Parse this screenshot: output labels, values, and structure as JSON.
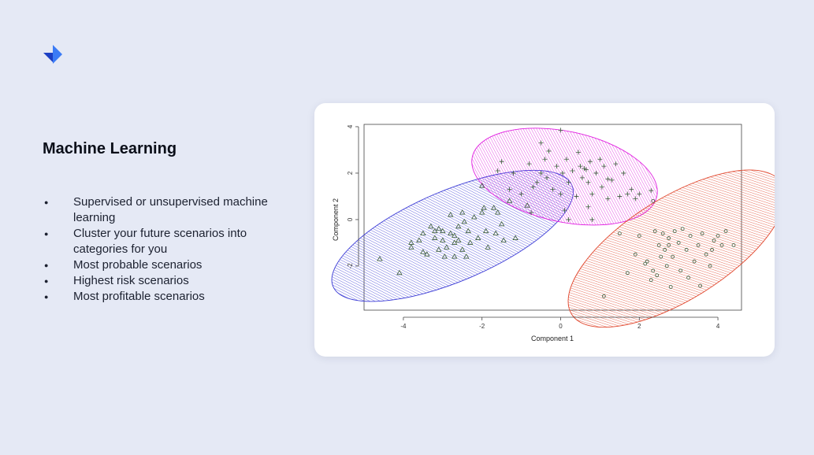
{
  "heading": "Machine Learning",
  "bullets": [
    "Supervised or unsupervised machine learning",
    "Cluster your future scenarios into categories for you",
    "Most probable scenarios",
    "Highest risk scenarios",
    "Most profitable scenarios"
  ],
  "colors": {
    "background": "#e5e9f5",
    "logo_dark": "#1c3fc4",
    "logo_light": "#3b7bf6",
    "cluster_blue": "#3b3bd6",
    "cluster_magenta": "#e01ee0",
    "cluster_red": "#e0442a",
    "points": "#3a5a3a"
  },
  "chart_data": {
    "type": "scatter",
    "title": "",
    "xlabel": "Component 1",
    "ylabel": "Component 2",
    "xlim": [
      -5,
      4.6
    ],
    "ylim": [
      -3.9,
      4.1
    ],
    "xticks": [
      -4,
      -2,
      0,
      2,
      4
    ],
    "yticks": [
      -2,
      0,
      2,
      4
    ],
    "grid": false,
    "clusters": [
      {
        "marker": "triangle",
        "color": "#3b3bd6",
        "ellipse": {
          "center": [
            -2.75,
            -0.7
          ],
          "rx": 3.3,
          "ry": 1.95,
          "angle_deg": 23
        },
        "points": [
          [
            -4.6,
            -1.7
          ],
          [
            -4.1,
            -2.3
          ],
          [
            -3.8,
            -1.0
          ],
          [
            -3.8,
            -1.2
          ],
          [
            -3.6,
            -0.9
          ],
          [
            -3.5,
            -0.6
          ],
          [
            -3.4,
            -1.5
          ],
          [
            -3.3,
            -0.3
          ],
          [
            -3.2,
            -0.8
          ],
          [
            -3.2,
            -0.5
          ],
          [
            -3.1,
            -1.3
          ],
          [
            -3.0,
            -0.9
          ],
          [
            -3.0,
            -0.5
          ],
          [
            -2.95,
            -1.6
          ],
          [
            -2.9,
            -1.2
          ],
          [
            -2.8,
            -0.6
          ],
          [
            -2.8,
            0.2
          ],
          [
            -2.7,
            -1.0
          ],
          [
            -2.7,
            -1.6
          ],
          [
            -2.6,
            -0.3
          ],
          [
            -2.6,
            -0.9
          ],
          [
            -2.5,
            0.3
          ],
          [
            -2.5,
            -1.3
          ],
          [
            -2.4,
            -1.6
          ],
          [
            -2.35,
            -0.5
          ],
          [
            -2.3,
            -1.0
          ],
          [
            -2.2,
            0.1
          ],
          [
            -2.1,
            -0.8
          ],
          [
            -2.0,
            0.3
          ],
          [
            -1.95,
            0.5
          ],
          [
            -1.9,
            -0.5
          ],
          [
            -1.85,
            -1.2
          ],
          [
            -1.7,
            0.5
          ],
          [
            -1.6,
            0.3
          ],
          [
            -1.5,
            -0.2
          ],
          [
            -1.45,
            -0.9
          ],
          [
            -1.3,
            0.8
          ],
          [
            -1.15,
            -0.8
          ],
          [
            -0.85,
            0.6
          ],
          [
            -2.7,
            -0.7
          ],
          [
            -2.0,
            1.45
          ],
          [
            -3.5,
            -1.4
          ],
          [
            -3.1,
            -0.4
          ],
          [
            -2.45,
            -0.1
          ],
          [
            -1.65,
            -0.6
          ]
        ]
      },
      {
        "marker": "plus",
        "color": "#e01ee0",
        "ellipse": {
          "center": [
            0.1,
            1.85
          ],
          "rx": 2.4,
          "ry": 1.95,
          "angle_deg": -12
        },
        "points": [
          [
            -1.6,
            2.1
          ],
          [
            -1.5,
            2.5
          ],
          [
            -1.3,
            1.3
          ],
          [
            -1.2,
            2.0
          ],
          [
            -1.0,
            1.1
          ],
          [
            -0.8,
            2.4
          ],
          [
            -0.75,
            0.3
          ],
          [
            -0.7,
            1.4
          ],
          [
            -0.5,
            3.3
          ],
          [
            -0.5,
            2.0
          ],
          [
            -0.4,
            2.6
          ],
          [
            -0.35,
            1.8
          ],
          [
            -0.3,
            2.95
          ],
          [
            -0.2,
            1.3
          ],
          [
            -0.1,
            2.3
          ],
          [
            0.0,
            3.85
          ],
          [
            0.0,
            1.1
          ],
          [
            0.1,
            0.4
          ],
          [
            0.15,
            2.6
          ],
          [
            0.2,
            1.6
          ],
          [
            0.3,
            2.1
          ],
          [
            0.4,
            1.0
          ],
          [
            0.45,
            2.9
          ],
          [
            0.5,
            2.3
          ],
          [
            0.55,
            1.8
          ],
          [
            0.6,
            2.2
          ],
          [
            0.65,
            2.15
          ],
          [
            0.7,
            1.6
          ],
          [
            0.75,
            2.5
          ],
          [
            0.8,
            1.1
          ],
          [
            0.9,
            2.0
          ],
          [
            1.0,
            2.6
          ],
          [
            1.05,
            1.4
          ],
          [
            1.1,
            2.3
          ],
          [
            1.2,
            0.9
          ],
          [
            1.3,
            1.7
          ],
          [
            1.4,
            2.4
          ],
          [
            1.5,
            1.0
          ],
          [
            1.6,
            2.0
          ],
          [
            1.7,
            1.1
          ],
          [
            1.8,
            1.3
          ],
          [
            1.9,
            0.9
          ],
          [
            2.0,
            1.1
          ],
          [
            2.3,
            1.25
          ],
          [
            0.2,
            0.0
          ],
          [
            0.7,
            0.55
          ],
          [
            -0.6,
            1.6
          ],
          [
            1.2,
            1.75
          ],
          [
            0.05,
            2.0
          ],
          [
            0.8,
            0.0
          ]
        ]
      },
      {
        "marker": "circle",
        "color": "#e0442a",
        "ellipse": {
          "center": [
            2.95,
            -1.25
          ],
          "rx": 3.15,
          "ry": 2.2,
          "angle_deg": 32
        },
        "points": [
          [
            1.1,
            -3.3
          ],
          [
            1.5,
            -0.6
          ],
          [
            1.7,
            -2.3
          ],
          [
            1.9,
            -1.5
          ],
          [
            2.0,
            -0.7
          ],
          [
            2.2,
            -1.8
          ],
          [
            2.3,
            -2.6
          ],
          [
            2.35,
            0.8
          ],
          [
            2.4,
            -0.5
          ],
          [
            2.45,
            -2.4
          ],
          [
            2.5,
            -1.1
          ],
          [
            2.6,
            -0.6
          ],
          [
            2.65,
            -1.3
          ],
          [
            2.7,
            -2.0
          ],
          [
            2.75,
            -0.8
          ],
          [
            2.8,
            -2.9
          ],
          [
            2.85,
            -1.6
          ],
          [
            2.9,
            -0.5
          ],
          [
            3.0,
            -1.0
          ],
          [
            3.05,
            -2.2
          ],
          [
            3.1,
            -0.4
          ],
          [
            3.2,
            -1.3
          ],
          [
            3.3,
            -0.7
          ],
          [
            3.4,
            -1.8
          ],
          [
            3.5,
            -1.1
          ],
          [
            3.6,
            -0.6
          ],
          [
            3.7,
            -1.5
          ],
          [
            3.8,
            -2.0
          ],
          [
            3.85,
            -1.3
          ],
          [
            3.9,
            -0.9
          ],
          [
            4.0,
            -0.7
          ],
          [
            4.1,
            -1.1
          ],
          [
            4.2,
            -0.5
          ],
          [
            4.4,
            -1.1
          ],
          [
            2.55,
            -1.6
          ],
          [
            3.25,
            -2.5
          ],
          [
            2.15,
            -1.9
          ],
          [
            2.75,
            -1.1
          ],
          [
            3.55,
            -2.85
          ],
          [
            2.35,
            -2.2
          ]
        ]
      }
    ]
  }
}
